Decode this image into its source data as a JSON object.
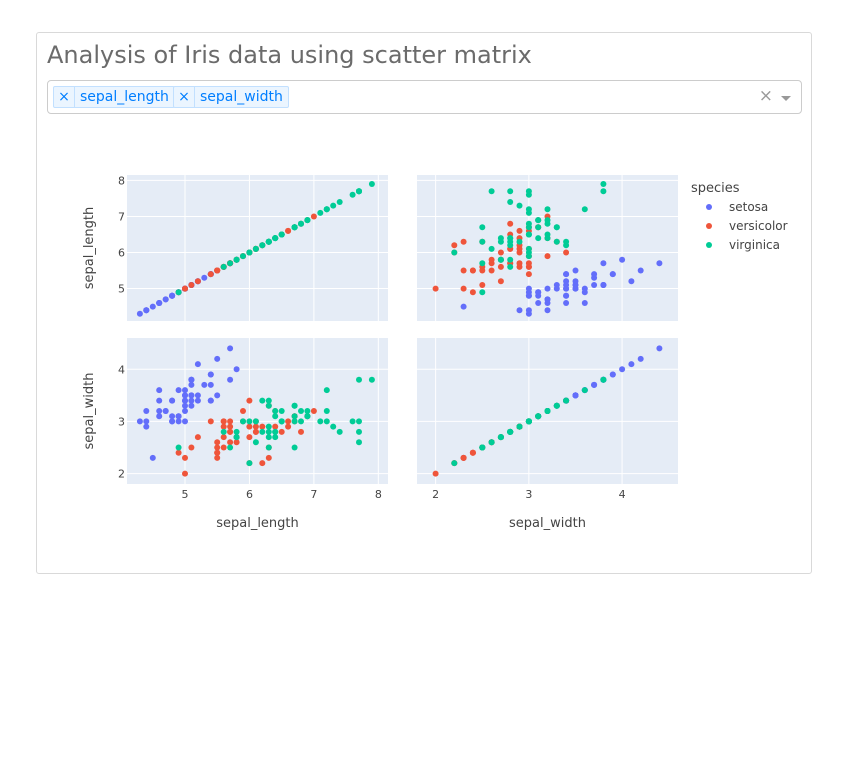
{
  "header": {
    "title": "Analysis of Iris data using scatter matrix"
  },
  "dropdown": {
    "selected": [
      "sepal_length",
      "sepal_width"
    ],
    "remove_symbol": "×",
    "clear_symbol": "×"
  },
  "colors": {
    "setosa": "#636efa",
    "versicolor": "#EF553B",
    "virginica": "#00cc96",
    "plot_bg": "#e5ecf6",
    "grid": "#ffffff",
    "tick_text": "#444444"
  },
  "chart_data": {
    "type": "scatter",
    "matrix": true,
    "dimensions": [
      "sepal_length",
      "sepal_width"
    ],
    "axis_ranges": {
      "sepal_length": [
        4.1,
        8.15
      ],
      "sepal_width": [
        1.8,
        4.6
      ]
    },
    "ticks": {
      "sepal_length": [
        5,
        6,
        7,
        8
      ],
      "sepal_width": [
        2,
        3,
        4
      ]
    },
    "tick_labels": {
      "sepal_length": [
        "5",
        "6",
        "7",
        "8"
      ],
      "sepal_width": [
        "2",
        "3",
        "4"
      ]
    },
    "grid": true,
    "legend": {
      "title": "species",
      "position": "right"
    },
    "series": [
      {
        "name": "setosa",
        "points": [
          [
            5.1,
            3.5
          ],
          [
            4.9,
            3.0
          ],
          [
            4.7,
            3.2
          ],
          [
            4.6,
            3.1
          ],
          [
            5.0,
            3.6
          ],
          [
            5.4,
            3.9
          ],
          [
            4.6,
            3.4
          ],
          [
            5.0,
            3.4
          ],
          [
            4.4,
            2.9
          ],
          [
            4.9,
            3.1
          ],
          [
            5.4,
            3.7
          ],
          [
            4.8,
            3.4
          ],
          [
            4.8,
            3.0
          ],
          [
            4.3,
            3.0
          ],
          [
            5.8,
            4.0
          ],
          [
            5.7,
            4.4
          ],
          [
            5.4,
            3.9
          ],
          [
            5.1,
            3.5
          ],
          [
            5.7,
            3.8
          ],
          [
            5.1,
            3.8
          ],
          [
            5.4,
            3.4
          ],
          [
            5.1,
            3.7
          ],
          [
            4.6,
            3.6
          ],
          [
            5.1,
            3.3
          ],
          [
            4.8,
            3.4
          ],
          [
            5.0,
            3.0
          ],
          [
            5.0,
            3.4
          ],
          [
            5.2,
            3.5
          ],
          [
            5.2,
            3.4
          ],
          [
            4.7,
            3.2
          ],
          [
            4.8,
            3.1
          ],
          [
            5.4,
            3.4
          ],
          [
            5.2,
            4.1
          ],
          [
            5.5,
            4.2
          ],
          [
            4.9,
            3.1
          ],
          [
            5.0,
            3.2
          ],
          [
            5.5,
            3.5
          ],
          [
            4.9,
            3.6
          ],
          [
            4.4,
            3.0
          ],
          [
            5.1,
            3.4
          ],
          [
            5.0,
            3.5
          ],
          [
            4.5,
            2.3
          ],
          [
            4.4,
            3.2
          ],
          [
            5.0,
            3.5
          ],
          [
            5.1,
            3.8
          ],
          [
            4.8,
            3.0
          ],
          [
            5.1,
            3.8
          ],
          [
            4.6,
            3.2
          ],
          [
            5.3,
            3.7
          ],
          [
            5.0,
            3.3
          ]
        ]
      },
      {
        "name": "versicolor",
        "points": [
          [
            7.0,
            3.2
          ],
          [
            6.4,
            3.2
          ],
          [
            6.9,
            3.1
          ],
          [
            5.5,
            2.3
          ],
          [
            6.5,
            2.8
          ],
          [
            5.7,
            2.8
          ],
          [
            6.3,
            3.3
          ],
          [
            4.9,
            2.4
          ],
          [
            6.6,
            2.9
          ],
          [
            5.2,
            2.7
          ],
          [
            5.0,
            2.0
          ],
          [
            5.9,
            3.0
          ],
          [
            6.0,
            2.2
          ],
          [
            6.1,
            2.9
          ],
          [
            5.6,
            2.9
          ],
          [
            6.7,
            3.1
          ],
          [
            5.6,
            3.0
          ],
          [
            5.8,
            2.7
          ],
          [
            6.2,
            2.2
          ],
          [
            5.6,
            2.5
          ],
          [
            5.9,
            3.2
          ],
          [
            6.1,
            2.8
          ],
          [
            6.3,
            2.5
          ],
          [
            6.1,
            2.8
          ],
          [
            6.4,
            2.9
          ],
          [
            6.6,
            3.0
          ],
          [
            6.8,
            2.8
          ],
          [
            6.7,
            3.0
          ],
          [
            6.0,
            2.9
          ],
          [
            5.7,
            2.6
          ],
          [
            5.5,
            2.4
          ],
          [
            5.5,
            2.4
          ],
          [
            5.8,
            2.7
          ],
          [
            6.0,
            2.7
          ],
          [
            5.4,
            3.0
          ],
          [
            6.0,
            3.4
          ],
          [
            6.7,
            3.1
          ],
          [
            6.3,
            2.3
          ],
          [
            5.6,
            3.0
          ],
          [
            5.5,
            2.5
          ],
          [
            5.5,
            2.6
          ],
          [
            6.1,
            3.0
          ],
          [
            5.8,
            2.6
          ],
          [
            5.0,
            2.3
          ],
          [
            5.6,
            2.7
          ],
          [
            5.7,
            3.0
          ],
          [
            5.7,
            2.9
          ],
          [
            6.2,
            2.9
          ],
          [
            5.1,
            2.5
          ],
          [
            5.7,
            2.8
          ]
        ]
      },
      {
        "name": "virginica",
        "points": [
          [
            6.3,
            3.3
          ],
          [
            5.8,
            2.7
          ],
          [
            7.1,
            3.0
          ],
          [
            6.3,
            2.9
          ],
          [
            6.5,
            3.0
          ],
          [
            7.6,
            3.0
          ],
          [
            4.9,
            2.5
          ],
          [
            7.3,
            2.9
          ],
          [
            6.7,
            2.5
          ],
          [
            7.2,
            3.6
          ],
          [
            6.5,
            3.2
          ],
          [
            6.4,
            2.7
          ],
          [
            6.8,
            3.0
          ],
          [
            5.7,
            2.5
          ],
          [
            5.8,
            2.8
          ],
          [
            6.4,
            3.2
          ],
          [
            6.5,
            3.0
          ],
          [
            7.7,
            3.8
          ],
          [
            7.7,
            2.6
          ],
          [
            6.0,
            2.2
          ],
          [
            6.9,
            3.2
          ],
          [
            5.6,
            2.8
          ],
          [
            7.7,
            2.8
          ],
          [
            6.3,
            2.7
          ],
          [
            6.7,
            3.3
          ],
          [
            7.2,
            3.2
          ],
          [
            6.2,
            2.8
          ],
          [
            6.1,
            3.0
          ],
          [
            6.4,
            2.8
          ],
          [
            7.2,
            3.0
          ],
          [
            7.4,
            2.8
          ],
          [
            7.9,
            3.8
          ],
          [
            6.4,
            2.8
          ],
          [
            6.3,
            2.8
          ],
          [
            6.1,
            2.6
          ],
          [
            7.7,
            3.0
          ],
          [
            6.3,
            3.4
          ],
          [
            6.4,
            3.1
          ],
          [
            6.0,
            3.0
          ],
          [
            6.9,
            3.1
          ],
          [
            6.7,
            3.1
          ],
          [
            6.9,
            3.1
          ],
          [
            5.8,
            2.7
          ],
          [
            6.8,
            3.2
          ],
          [
            6.7,
            3.3
          ],
          [
            6.7,
            3.0
          ],
          [
            6.3,
            2.5
          ],
          [
            6.5,
            3.0
          ],
          [
            6.2,
            3.4
          ],
          [
            5.9,
            3.0
          ]
        ]
      }
    ]
  }
}
